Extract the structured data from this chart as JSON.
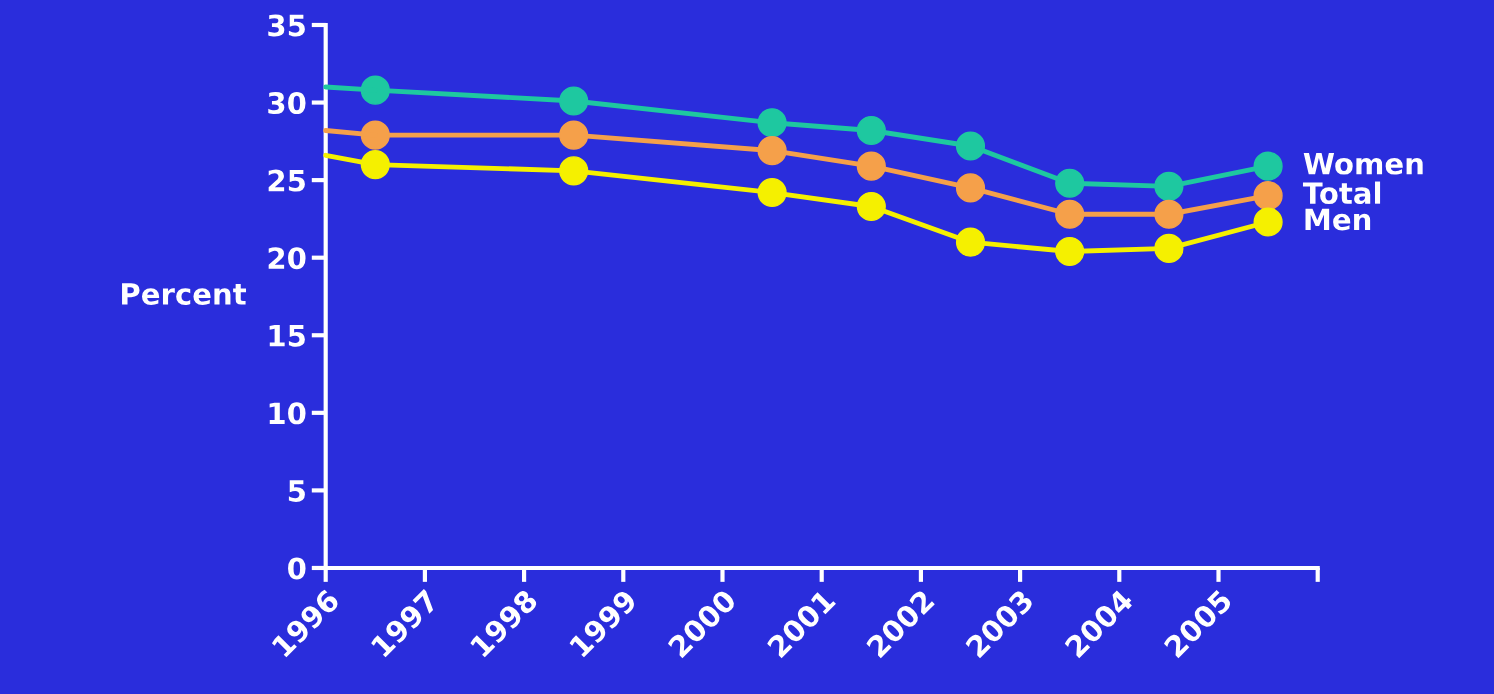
{
  "chart_data": {
    "type": "line",
    "ylabel": "Percent",
    "xlim": [
      1996,
      2006
    ],
    "ylim": [
      0,
      35
    ],
    "xticks": [
      {
        "value": 1996,
        "label": "1996"
      },
      {
        "value": 1997,
        "label": "1997"
      },
      {
        "value": 1998,
        "label": "1998"
      },
      {
        "value": 1999,
        "label": "1999"
      },
      {
        "value": 2000,
        "label": "2000"
      },
      {
        "value": 2001,
        "label": "2001"
      },
      {
        "value": 2002,
        "label": "2002"
      },
      {
        "value": 2003,
        "label": "2003"
      },
      {
        "value": 2004,
        "label": "2004"
      },
      {
        "value": 2005,
        "label": "2005"
      },
      {
        "value": 2006,
        "label": null
      }
    ],
    "yticks": [
      0,
      5,
      10,
      15,
      20,
      25,
      30,
      35
    ],
    "grid": false,
    "legend": false,
    "marker": "circle",
    "series": [
      {
        "name": "Women",
        "color": "#1ec8a0",
        "x": [
          1996.5,
          1998.5,
          2000.5,
          2001.5,
          2002.5,
          2003.5,
          2004.5,
          2005.5
        ],
        "values": [
          30.8,
          30.1,
          28.7,
          28.2,
          27.2,
          24.8,
          24.6,
          25.9
        ]
      },
      {
        "name": "Total",
        "color": "#f5a04a",
        "x": [
          1996.5,
          1998.5,
          2000.5,
          2001.5,
          2002.5,
          2003.5,
          2004.5,
          2005.5
        ],
        "values": [
          27.9,
          27.9,
          26.9,
          25.9,
          24.5,
          22.8,
          22.8,
          24.0
        ]
      },
      {
        "name": "Men",
        "color": "#f5f000",
        "x": [
          1996.5,
          1998.5,
          2000.5,
          2001.5,
          2002.5,
          2003.5,
          2004.5,
          2005.5
        ],
        "values": [
          26.0,
          25.6,
          24.2,
          23.3,
          21.0,
          20.4,
          20.6,
          22.3
        ]
      },
      {
        "color": "#1ec8a0",
        "marker": "none",
        "x": [
          1996,
          1996.5
        ],
        "values": [
          31.0,
          30.8
        ]
      },
      {
        "color": "#f5a04a",
        "marker": "none",
        "x": [
          1996,
          1996.5
        ],
        "values": [
          28.2,
          27.9
        ]
      },
      {
        "color": "#f5f000",
        "marker": "none",
        "x": [
          1996,
          1996.5
        ],
        "values": [
          26.6,
          26.0
        ]
      }
    ]
  }
}
